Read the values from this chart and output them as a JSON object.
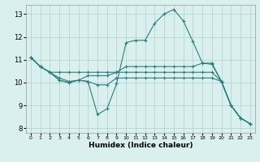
{
  "xlabel": "Humidex (Indice chaleur)",
  "bg_color": "#daf0ef",
  "grid_color": "#b0d0d0",
  "line_color": "#2e7d7d",
  "x_ticks": [
    0,
    1,
    2,
    3,
    4,
    5,
    6,
    7,
    8,
    9,
    10,
    11,
    12,
    13,
    14,
    15,
    16,
    17,
    18,
    19,
    20,
    21,
    22,
    23
  ],
  "y_ticks": [
    8,
    9,
    10,
    11,
    12,
    13
  ],
  "xlim": [
    -0.5,
    23.5
  ],
  "ylim": [
    7.8,
    13.4
  ],
  "series": [
    [
      11.1,
      10.7,
      10.45,
      10.1,
      10.0,
      10.1,
      10.05,
      8.6,
      8.85,
      9.95,
      11.75,
      11.85,
      11.85,
      12.6,
      13.0,
      13.2,
      12.7,
      11.8,
      10.85,
      10.8,
      10.05,
      9.0,
      8.45,
      8.2
    ],
    [
      11.1,
      10.7,
      10.45,
      10.45,
      10.45,
      10.45,
      10.45,
      10.45,
      10.45,
      10.45,
      10.7,
      10.7,
      10.7,
      10.7,
      10.7,
      10.7,
      10.7,
      10.7,
      10.85,
      10.85,
      10.05,
      9.0,
      8.45,
      8.2
    ],
    [
      11.1,
      10.7,
      10.45,
      10.2,
      10.05,
      10.1,
      10.3,
      10.3,
      10.3,
      10.45,
      10.45,
      10.45,
      10.45,
      10.45,
      10.45,
      10.45,
      10.45,
      10.45,
      10.45,
      10.45,
      10.05,
      9.0,
      8.45,
      8.2
    ],
    [
      11.1,
      10.7,
      10.45,
      10.1,
      10.0,
      10.1,
      10.05,
      9.9,
      9.9,
      10.2,
      10.2,
      10.2,
      10.2,
      10.2,
      10.2,
      10.2,
      10.2,
      10.2,
      10.2,
      10.2,
      10.05,
      9.0,
      8.45,
      8.2
    ]
  ]
}
